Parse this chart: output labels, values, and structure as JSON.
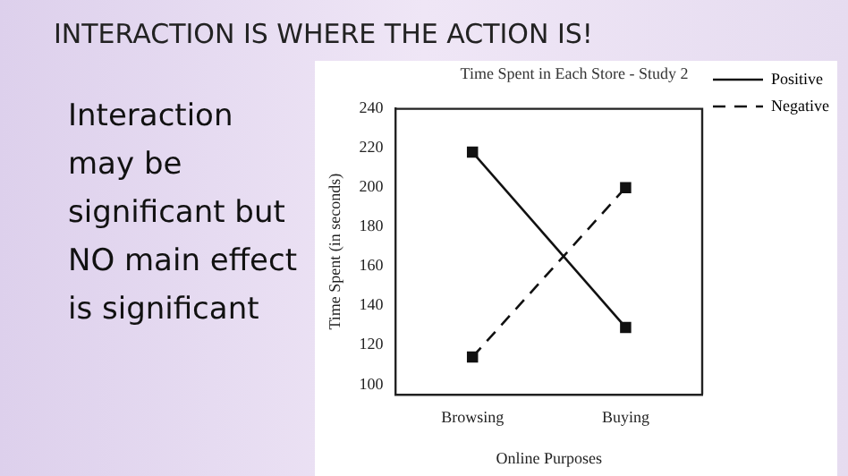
{
  "chart_data": {
    "type": "line",
    "title": "INTERACTION IS WHERE THE ACTION IS!",
    "subtitle": "Time Spent in Each Store - Study 2",
    "annotations": [
      "Interaction may be significant but NO main effect is significant"
    ],
    "xlabel": "Online Purposes",
    "ylabel": "Time Spent (in seconds)",
    "categories": [
      "Browsing",
      "Buying"
    ],
    "series": [
      {
        "name": "Positive",
        "color": "#111111",
        "values": [
          218,
          129
        ],
        "line_style": "solid"
      },
      {
        "name": "Negative",
        "color": "#111111",
        "values": [
          114,
          200
        ],
        "line_style": "dashed"
      }
    ],
    "ylim": [
      95,
      240
    ],
    "yticks": [
      100,
      120,
      140,
      160,
      180,
      200,
      220,
      240
    ],
    "grid": false,
    "legend": "top right",
    "marker": "square"
  }
}
